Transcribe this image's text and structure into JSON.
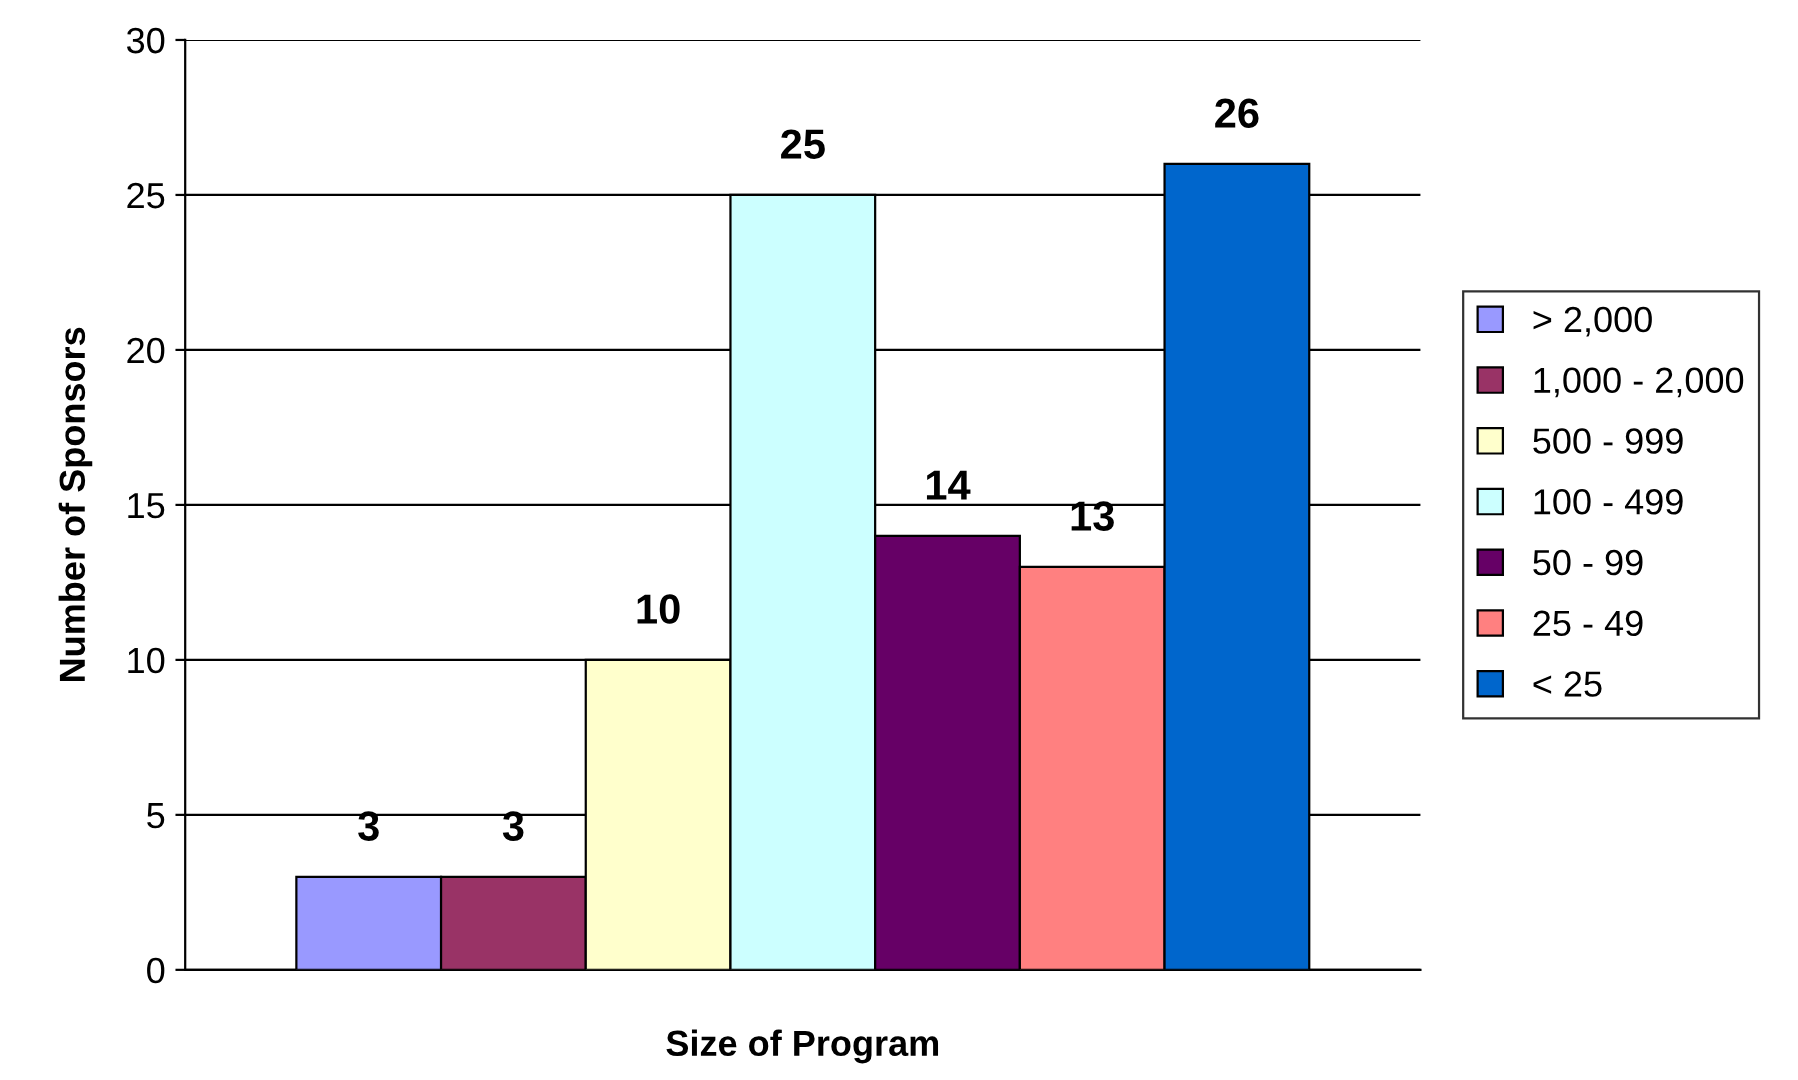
{
  "chart_data": {
    "type": "bar",
    "xlabel": "Size of Program",
    "ylabel": "Number of Sponsors",
    "categories": [
      null
    ],
    "series": [
      {
        "name": "> 2,000",
        "color": "#9999ff",
        "values": [
          3
        ]
      },
      {
        "name": "1,000 - 2,000",
        "color": "#993366",
        "values": [
          3
        ]
      },
      {
        "name": "500 - 999",
        "color": "#ffffcc",
        "values": [
          10
        ]
      },
      {
        "name": "100 - 499",
        "color": "#ccffff",
        "values": [
          25
        ]
      },
      {
        "name": "50 - 99",
        "color": "#660066",
        "values": [
          14
        ]
      },
      {
        "name": "25 - 49",
        "color": "#ff8080",
        "values": [
          13
        ]
      },
      {
        "name": "< 25",
        "color": "#0066cc",
        "values": [
          26
        ]
      }
    ],
    "ylim": [
      0,
      30
    ],
    "yticks": [
      0,
      5,
      10,
      15,
      20,
      25,
      30
    ],
    "grid": "y",
    "legend": "right",
    "data_labels": true
  }
}
